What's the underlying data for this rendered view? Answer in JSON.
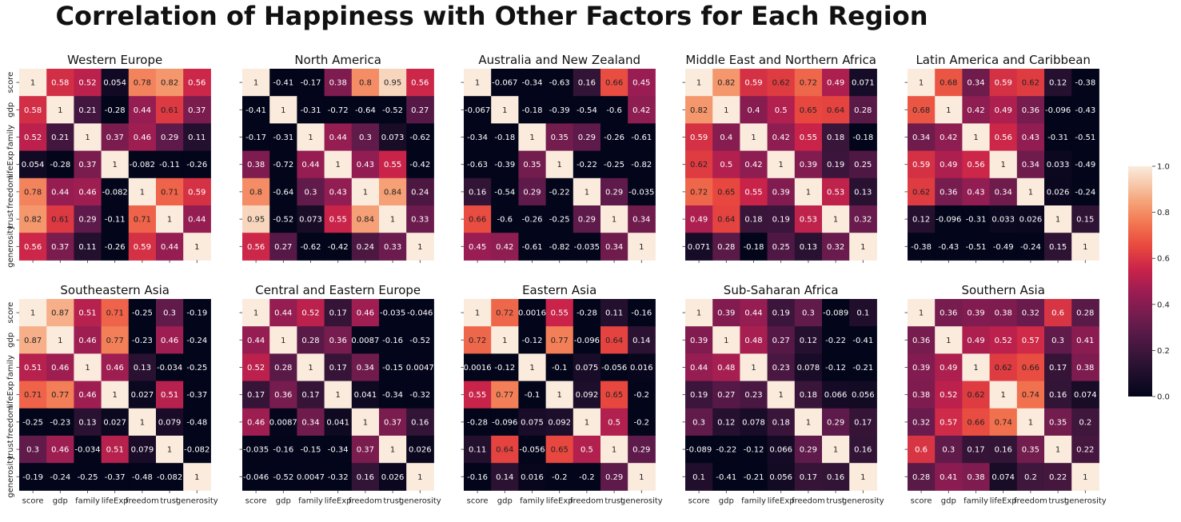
{
  "title": "Correlation of Happiness with Other Factors for Each Region",
  "chart_data": {
    "type": "heatmap",
    "variables": [
      "score",
      "gdp",
      "family",
      "lifeExp",
      "freedom",
      "trust",
      "generosity"
    ],
    "colorbar": {
      "min": 0,
      "max": 1,
      "ticks": [
        "0.0",
        "0.2",
        "0.4",
        "0.6",
        "0.8",
        "1.0"
      ],
      "colormap": "rocket"
    },
    "panels": [
      {
        "title": "Western Europe",
        "matrix": [
          [
            "1",
            "0.58",
            "0.52",
            "0.054",
            "0.78",
            "0.82",
            "0.56"
          ],
          [
            "0.58",
            "1",
            "0.21",
            "-0.28",
            "0.44",
            "0.61",
            "0.37"
          ],
          [
            "0.52",
            "0.21",
            "1",
            "0.37",
            "0.46",
            "0.29",
            "0.11"
          ],
          [
            "0.054",
            "-0.28",
            "0.37",
            "1",
            "-0.082",
            "-0.11",
            "-0.26"
          ],
          [
            "0.78",
            "0.44",
            "0.46",
            "-0.082",
            "1",
            "0.71",
            "0.59"
          ],
          [
            "0.82",
            "0.61",
            "0.29",
            "-0.11",
            "0.71",
            "1",
            "0.44"
          ],
          [
            "0.56",
            "0.37",
            "0.11",
            "-0.26",
            "0.59",
            "0.44",
            "1"
          ]
        ]
      },
      {
        "title": "North America",
        "matrix": [
          [
            "1",
            "-0.41",
            "-0.17",
            "0.38",
            "0.8",
            "0.95",
            "0.56"
          ],
          [
            "-0.41",
            "1",
            "-0.31",
            "-0.72",
            "-0.64",
            "-0.52",
            "0.27"
          ],
          [
            "-0.17",
            "-0.31",
            "1",
            "0.44",
            "0.3",
            "0.073",
            "-0.62"
          ],
          [
            "0.38",
            "-0.72",
            "0.44",
            "1",
            "0.43",
            "0.55",
            "-0.42"
          ],
          [
            "0.8",
            "-0.64",
            "0.3",
            "0.43",
            "1",
            "0.84",
            "0.24"
          ],
          [
            "0.95",
            "-0.52",
            "0.073",
            "0.55",
            "0.84",
            "1",
            "0.33"
          ],
          [
            "0.56",
            "0.27",
            "-0.62",
            "-0.42",
            "0.24",
            "0.33",
            "1"
          ]
        ]
      },
      {
        "title": "Australia and New Zealand",
        "matrix": [
          [
            "1",
            "-0.067",
            "-0.34",
            "-0.63",
            "0.16",
            "0.66",
            "0.45"
          ],
          [
            "-0.067",
            "1",
            "-0.18",
            "-0.39",
            "-0.54",
            "-0.6",
            "0.42"
          ],
          [
            "-0.34",
            "-0.18",
            "1",
            "0.35",
            "0.29",
            "-0.26",
            "-0.61"
          ],
          [
            "-0.63",
            "-0.39",
            "0.35",
            "1",
            "-0.22",
            "-0.25",
            "-0.82"
          ],
          [
            "0.16",
            "-0.54",
            "0.29",
            "-0.22",
            "1",
            "0.29",
            "-0.035"
          ],
          [
            "0.66",
            "-0.6",
            "-0.26",
            "-0.25",
            "0.29",
            "1",
            "0.34"
          ],
          [
            "0.45",
            "0.42",
            "-0.61",
            "-0.82",
            "-0.035",
            "0.34",
            "1"
          ]
        ]
      },
      {
        "title": "Middle East and Northern Africa",
        "matrix": [
          [
            "1",
            "0.82",
            "0.59",
            "0.62",
            "0.72",
            "0.49",
            "0.071"
          ],
          [
            "0.82",
            "1",
            "0.4",
            "0.5",
            "0.65",
            "0.64",
            "0.28"
          ],
          [
            "0.59",
            "0.4",
            "1",
            "0.42",
            "0.55",
            "0.18",
            "-0.18"
          ],
          [
            "0.62",
            "0.5",
            "0.42",
            "1",
            "0.39",
            "0.19",
            "0.25"
          ],
          [
            "0.72",
            "0.65",
            "0.55",
            "0.39",
            "1",
            "0.53",
            "0.13"
          ],
          [
            "0.49",
            "0.64",
            "0.18",
            "0.19",
            "0.53",
            "1",
            "0.32"
          ],
          [
            "0.071",
            "0.28",
            "-0.18",
            "0.25",
            "0.13",
            "0.32",
            "1"
          ]
        ]
      },
      {
        "title": "Latin America and Caribbean",
        "matrix": [
          [
            "1",
            "0.68",
            "0.34",
            "0.59",
            "0.62",
            "0.12",
            "-0.38"
          ],
          [
            "0.68",
            "1",
            "0.42",
            "0.49",
            "0.36",
            "-0.096",
            "-0.43"
          ],
          [
            "0.34",
            "0.42",
            "1",
            "0.56",
            "0.43",
            "-0.31",
            "-0.51"
          ],
          [
            "0.59",
            "0.49",
            "0.56",
            "1",
            "0.34",
            "0.033",
            "-0.49"
          ],
          [
            "0.62",
            "0.36",
            "0.43",
            "0.34",
            "1",
            "0.026",
            "-0.24"
          ],
          [
            "0.12",
            "-0.096",
            "-0.31",
            "0.033",
            "0.026",
            "1",
            "0.15"
          ],
          [
            "-0.38",
            "-0.43",
            "-0.51",
            "-0.49",
            "-0.24",
            "0.15",
            "1"
          ]
        ]
      },
      {
        "title": "Southeastern Asia",
        "matrix": [
          [
            "1",
            "0.87",
            "0.51",
            "0.71",
            "-0.25",
            "0.3",
            "-0.19"
          ],
          [
            "0.87",
            "1",
            "0.46",
            "0.77",
            "-0.23",
            "0.46",
            "-0.24"
          ],
          [
            "0.51",
            "0.46",
            "1",
            "0.46",
            "0.13",
            "-0.034",
            "-0.25"
          ],
          [
            "0.71",
            "0.77",
            "0.46",
            "1",
            "0.027",
            "0.51",
            "-0.37"
          ],
          [
            "-0.25",
            "-0.23",
            "0.13",
            "0.027",
            "1",
            "0.079",
            "-0.48"
          ],
          [
            "0.3",
            "0.46",
            "-0.034",
            "0.51",
            "0.079",
            "1",
            "-0.082"
          ],
          [
            "-0.19",
            "-0.24",
            "-0.25",
            "-0.37",
            "-0.48",
            "-0.082",
            "1"
          ]
        ]
      },
      {
        "title": "Central and Eastern Europe",
        "matrix": [
          [
            "1",
            "0.44",
            "0.52",
            "0.17",
            "0.46",
            "-0.035",
            "-0.046"
          ],
          [
            "0.44",
            "1",
            "0.28",
            "0.36",
            "0.0087",
            "-0.16",
            "-0.52"
          ],
          [
            "0.52",
            "0.28",
            "1",
            "0.17",
            "0.34",
            "-0.15",
            "0.0047"
          ],
          [
            "0.17",
            "0.36",
            "0.17",
            "1",
            "0.041",
            "-0.34",
            "-0.32"
          ],
          [
            "0.46",
            "0.0087",
            "0.34",
            "0.041",
            "1",
            "0.37",
            "0.16"
          ],
          [
            "-0.035",
            "-0.16",
            "-0.15",
            "-0.34",
            "0.37",
            "1",
            "0.026"
          ],
          [
            "-0.046",
            "-0.52",
            "0.0047",
            "-0.32",
            "0.16",
            "0.026",
            "1"
          ]
        ]
      },
      {
        "title": "Eastern Asia",
        "matrix": [
          [
            "1",
            "0.72",
            "0.0016",
            "0.55",
            "-0.28",
            "0.11",
            "-0.16"
          ],
          [
            "0.72",
            "1",
            "-0.12",
            "0.77",
            "-0.096",
            "0.64",
            "0.14"
          ],
          [
            "0.0016",
            "-0.12",
            "1",
            "-0.1",
            "0.075",
            "-0.056",
            "0.016"
          ],
          [
            "0.55",
            "0.77",
            "-0.1",
            "1",
            "0.092",
            "0.65",
            "-0.2"
          ],
          [
            "-0.28",
            "-0.096",
            "0.075",
            "0.092",
            "1",
            "0.5",
            "-0.2"
          ],
          [
            "0.11",
            "0.64",
            "-0.056",
            "0.65",
            "0.5",
            "1",
            "0.29"
          ],
          [
            "-0.16",
            "0.14",
            "0.016",
            "-0.2",
            "-0.2",
            "0.29",
            "1"
          ]
        ]
      },
      {
        "title": "Sub-Saharan Africa",
        "matrix": [
          [
            "1",
            "0.39",
            "0.44",
            "0.19",
            "0.3",
            "-0.089",
            "0.1"
          ],
          [
            "0.39",
            "1",
            "0.48",
            "0.27",
            "0.12",
            "-0.22",
            "-0.41"
          ],
          [
            "0.44",
            "0.48",
            "1",
            "0.23",
            "0.078",
            "-0.12",
            "-0.21"
          ],
          [
            "0.19",
            "0.27",
            "0.23",
            "1",
            "0.18",
            "0.066",
            "0.056"
          ],
          [
            "0.3",
            "0.12",
            "0.078",
            "0.18",
            "1",
            "0.29",
            "0.17"
          ],
          [
            "-0.089",
            "-0.22",
            "-0.12",
            "0.066",
            "0.29",
            "1",
            "0.16"
          ],
          [
            "0.1",
            "-0.41",
            "-0.21",
            "0.056",
            "0.17",
            "0.16",
            "1"
          ]
        ]
      },
      {
        "title": "Southern Asia",
        "matrix": [
          [
            "1",
            "0.36",
            "0.39",
            "0.38",
            "0.32",
            "0.6",
            "0.28"
          ],
          [
            "0.36",
            "1",
            "0.49",
            "0.52",
            "0.57",
            "0.3",
            "0.41"
          ],
          [
            "0.39",
            "0.49",
            "1",
            "0.62",
            "0.66",
            "0.17",
            "0.38"
          ],
          [
            "0.38",
            "0.52",
            "0.62",
            "1",
            "0.74",
            "0.16",
            "0.074"
          ],
          [
            "0.32",
            "0.57",
            "0.66",
            "0.74",
            "1",
            "0.35",
            "0.2"
          ],
          [
            "0.6",
            "0.3",
            "0.17",
            "0.16",
            "0.35",
            "1",
            "0.22"
          ],
          [
            "0.28",
            "0.41",
            "0.38",
            "0.074",
            "0.2",
            "0.22",
            "1"
          ]
        ]
      }
    ]
  }
}
